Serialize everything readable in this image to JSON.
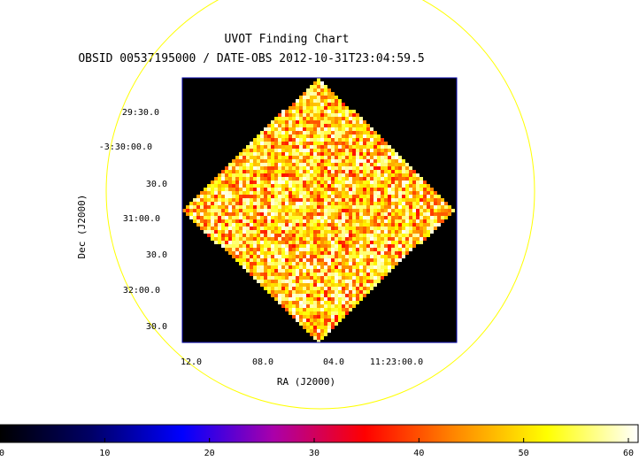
{
  "chart_data": {
    "type": "heatmap",
    "title": "UVOT Finding Chart",
    "subtitle": "OBSID 00537195000 / DATE-OBS 2012-10-31T23:04:59.5",
    "xlabel": "RA (J2000)",
    "ylabel": "Dec (J2000)",
    "x_ticks": [
      "12.0",
      "08.0",
      "04.0",
      "11:23:00.0"
    ],
    "y_ticks": [
      "29:30.0",
      "-3:30:00.0",
      "30.0",
      "31:00.0",
      "30.0",
      "32:00.0",
      "30.0"
    ],
    "colorbar": {
      "min": 0,
      "max": 60,
      "ticks": [
        0,
        10,
        20,
        30,
        40,
        50,
        60
      ],
      "stops": [
        "#000000",
        "#000066",
        "#0000ff",
        "#aa00aa",
        "#ff0000",
        "#ff8800",
        "#ffff00",
        "#ffffff"
      ]
    },
    "image_value_range": [
      35,
      60
    ],
    "field_shape": "rotated-square",
    "circle_color": "#ffff00",
    "frame_color": "#0000aa"
  }
}
